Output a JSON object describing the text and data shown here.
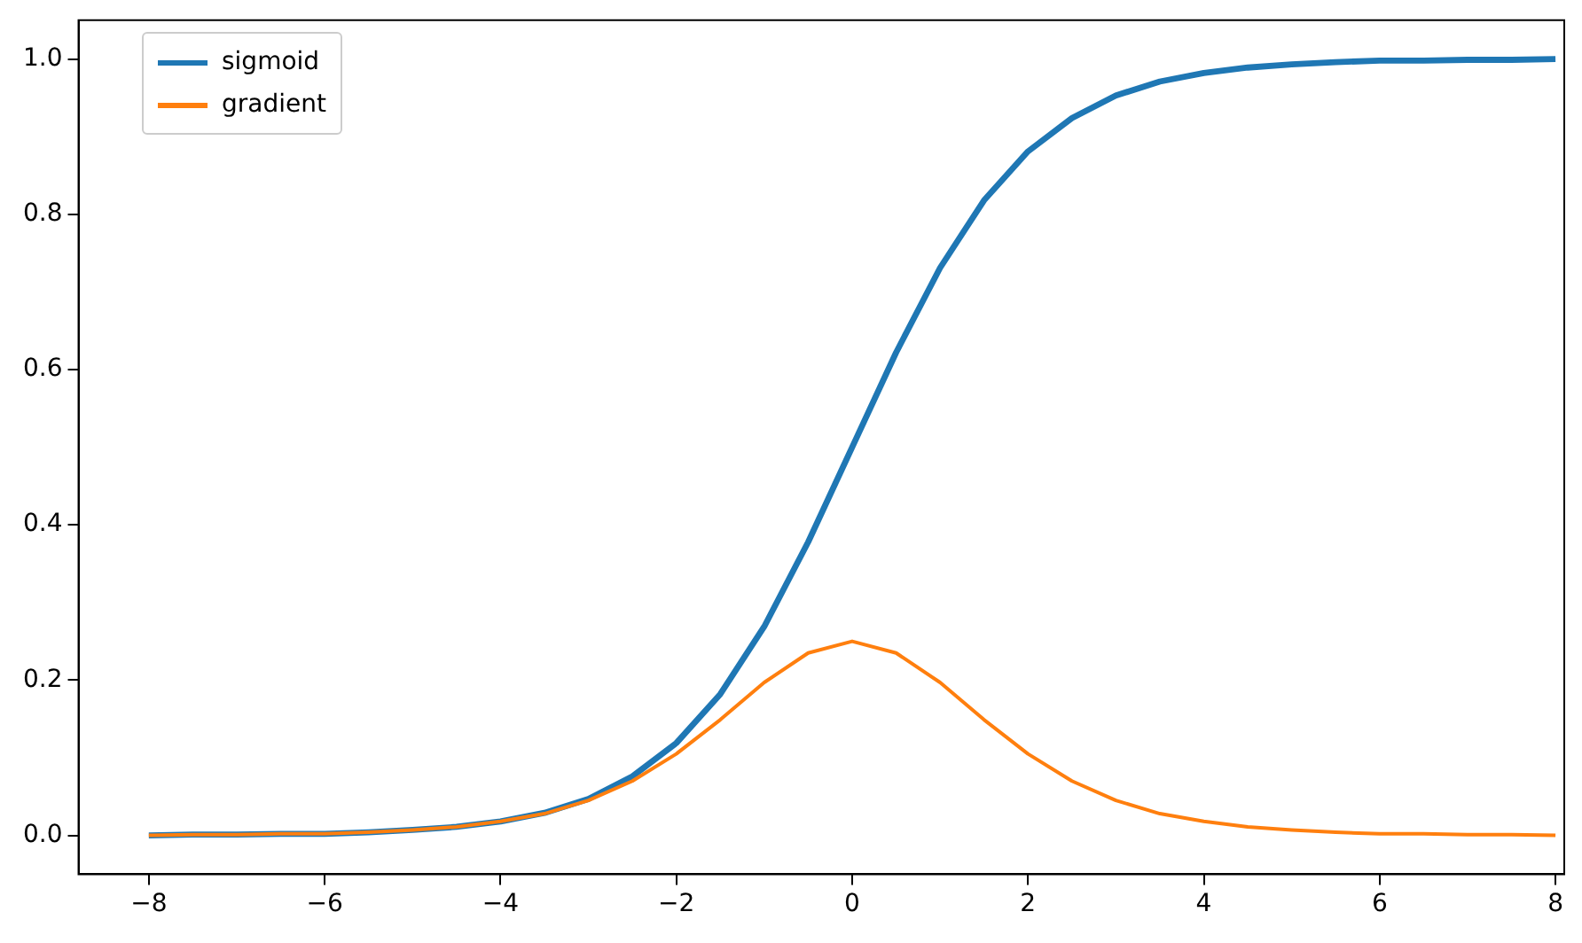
{
  "chart_data": {
    "type": "line",
    "x": [
      -8,
      -7.5,
      -7,
      -6.5,
      -6,
      -5.5,
      -5,
      -4.5,
      -4,
      -3.5,
      -3,
      -2.5,
      -2,
      -1.5,
      -1,
      -0.5,
      0,
      0.5,
      1,
      1.5,
      2,
      2.5,
      3,
      3.5,
      4,
      4.5,
      5,
      5.5,
      6,
      6.5,
      7,
      7.5,
      8
    ],
    "series": [
      {
        "name": "sigmoid",
        "color": "#1f77b4",
        "values": [
          0.0,
          0.001,
          0.001,
          0.002,
          0.002,
          0.004,
          0.007,
          0.011,
          0.018,
          0.029,
          0.047,
          0.076,
          0.119,
          0.182,
          0.269,
          0.378,
          0.5,
          0.622,
          0.731,
          0.818,
          0.881,
          0.924,
          0.953,
          0.971,
          0.982,
          0.989,
          0.993,
          0.996,
          0.998,
          0.998,
          0.999,
          0.999,
          1.0
        ]
      },
      {
        "name": "gradient",
        "color": "#ff7f0e",
        "values": [
          0.0,
          0.001,
          0.001,
          0.002,
          0.002,
          0.004,
          0.007,
          0.011,
          0.018,
          0.028,
          0.045,
          0.07,
          0.105,
          0.149,
          0.197,
          0.235,
          0.25,
          0.235,
          0.197,
          0.149,
          0.105,
          0.07,
          0.045,
          0.028,
          0.018,
          0.011,
          0.007,
          0.004,
          0.002,
          0.002,
          0.001,
          0.001,
          0.0
        ]
      }
    ],
    "xlim": [
      -8.8,
      8.1
    ],
    "xticks": [
      -8,
      -6,
      -4,
      -2,
      0,
      2,
      4,
      6,
      8
    ],
    "ylim": [
      -0.05,
      1.05
    ],
    "yticks": [
      {
        "value": 0,
        "label": "0.0"
      },
      {
        "value": 0.2,
        "label": "0.2"
      },
      {
        "value": 0.4,
        "label": "0.4"
      },
      {
        "value": 0.6,
        "label": "0.6"
      },
      {
        "value": 0.8,
        "label": "0.8"
      },
      {
        "value": 1,
        "label": "1.0"
      }
    ],
    "legend": "top left",
    "grid": false,
    "marker": "none",
    "line_style": "solid"
  }
}
